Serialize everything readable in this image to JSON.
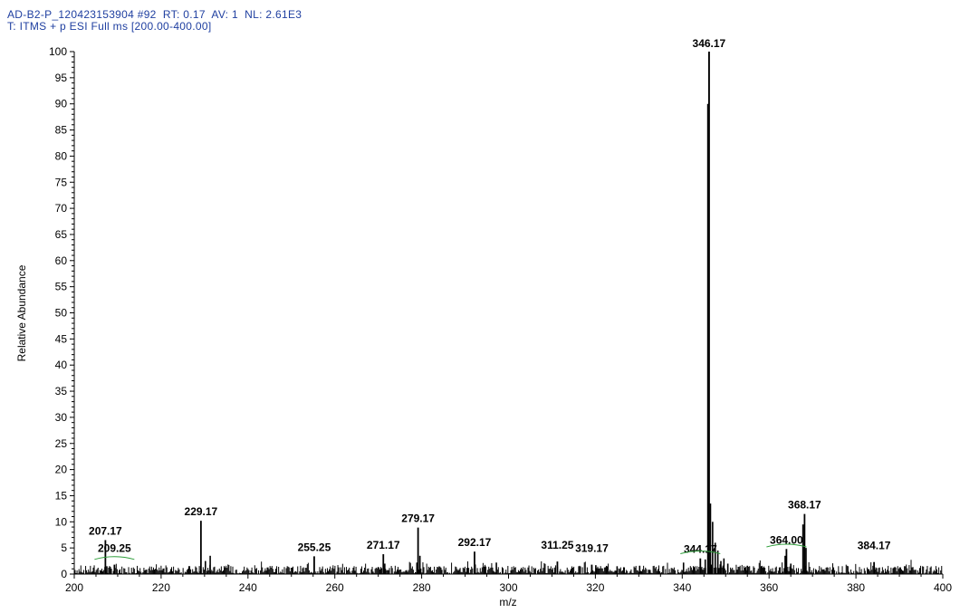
{
  "header": {
    "line1": "AD-B2-P_120423153904 #92  RT: 0.17  AV: 1  NL: 2.61E3",
    "line2": "T: ITMS + p ESI Full ms [200.00-400.00]"
  },
  "chart_data": {
    "type": "bar",
    "xlabel": "m/z",
    "ylabel": "Relative Abundance",
    "xlim": [
      200,
      400
    ],
    "ylim": [
      0,
      100
    ],
    "x_ticks": [
      200,
      220,
      240,
      260,
      280,
      300,
      320,
      340,
      360,
      380,
      400
    ],
    "y_ticks": [
      0,
      5,
      10,
      15,
      20,
      25,
      30,
      35,
      40,
      45,
      50,
      55,
      60,
      65,
      70,
      75,
      80,
      85,
      90,
      95,
      100
    ],
    "labeled_peaks": [
      {
        "mz": 207.17,
        "label": "207.17",
        "abundance": 6.5
      },
      {
        "mz": 209.25,
        "label": "209.25",
        "abundance": 1.8
      },
      {
        "mz": 229.17,
        "label": "229.17",
        "abundance": 10.2
      },
      {
        "mz": 255.25,
        "label": "255.25",
        "abundance": 3.4
      },
      {
        "mz": 271.17,
        "label": "271.17",
        "abundance": 3.8
      },
      {
        "mz": 279.17,
        "label": "279.17",
        "abundance": 8.9
      },
      {
        "mz": 292.17,
        "label": "292.17",
        "abundance": 4.3
      },
      {
        "mz": 311.25,
        "label": "311.25",
        "abundance": 2.4
      },
      {
        "mz": 319.17,
        "label": "319.17",
        "abundance": 1.8
      },
      {
        "mz": 344.17,
        "label": "344.17",
        "abundance": 3.0
      },
      {
        "mz": 346.17,
        "label": "346.17",
        "abundance": 100
      },
      {
        "mz": 364.0,
        "label": "364.00",
        "abundance": 4.8
      },
      {
        "mz": 368.17,
        "label": "368.17",
        "abundance": 11.5
      },
      {
        "mz": 384.17,
        "label": "384.17",
        "abundance": 2.3
      }
    ],
    "peaks": [
      {
        "mz": 345.9,
        "abundance": 90
      },
      {
        "mz": 346.17,
        "abundance": 100
      },
      {
        "mz": 346.5,
        "abundance": 13.5
      },
      {
        "mz": 347.0,
        "abundance": 10
      },
      {
        "mz": 347.6,
        "abundance": 6
      },
      {
        "mz": 348.2,
        "abundance": 4.5
      },
      {
        "mz": 348.9,
        "abundance": 2.5
      },
      {
        "mz": 349.6,
        "abundance": 3
      },
      {
        "mz": 350.5,
        "abundance": 2
      },
      {
        "mz": 345.3,
        "abundance": 2.8
      },
      {
        "mz": 367.8,
        "abundance": 9.5
      },
      {
        "mz": 368.5,
        "abundance": 5
      },
      {
        "mz": 363.7,
        "abundance": 3.5
      },
      {
        "mz": 365.0,
        "abundance": 2
      },
      {
        "mz": 279.6,
        "abundance": 3.5
      },
      {
        "mz": 278.9,
        "abundance": 2.2
      },
      {
        "mz": 230.2,
        "abundance": 2.5
      },
      {
        "mz": 231.3,
        "abundance": 3.5
      },
      {
        "mz": 207.5,
        "abundance": 1.5
      },
      {
        "mz": 271.5,
        "abundance": 2
      },
      {
        "mz": 297.2,
        "abundance": 2.2
      },
      {
        "mz": 320.1,
        "abundance": 1.7
      },
      {
        "mz": 325.0,
        "abundance": 1.5
      },
      {
        "mz": 330.2,
        "abundance": 1.6
      },
      {
        "mz": 340.3,
        "abundance": 2.2
      },
      {
        "mz": 355.0,
        "abundance": 1.6
      },
      {
        "mz": 358.2,
        "abundance": 1.5
      },
      {
        "mz": 390.2,
        "abundance": 1.3
      }
    ],
    "noise_level": 1.6
  }
}
